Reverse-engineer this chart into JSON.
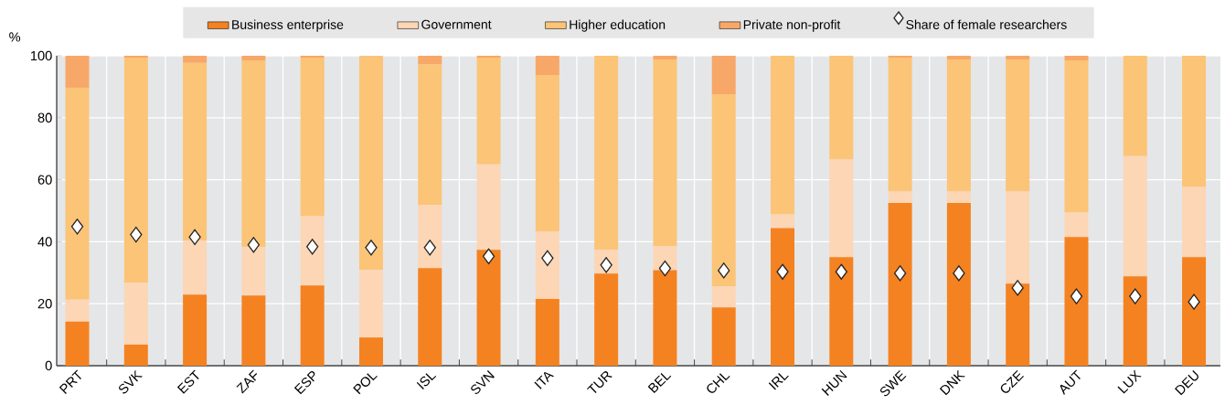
{
  "chart_data": {
    "type": "bar",
    "stacked": true,
    "ylabel": "%",
    "categories": [
      "PRT",
      "SVK",
      "EST",
      "ZAF",
      "ESP",
      "POL",
      "ISL",
      "SVN",
      "ITA",
      "TUR",
      "BEL",
      "CHL",
      "IRL",
      "HUN",
      "SWE",
      "DNK",
      "CZE",
      "AUT",
      "LUX",
      "DEU"
    ],
    "series": [
      {
        "name": "Business enterprise",
        "type": "bar",
        "color": "#f58220",
        "values": [
          14.2,
          6.8,
          22.9,
          22.6,
          25.9,
          9.1,
          31.5,
          37.4,
          21.5,
          29.7,
          30.8,
          18.8,
          44.4,
          35,
          52.5,
          52.5,
          26.5,
          41.5,
          28.8,
          35
        ]
      },
      {
        "name": "Government",
        "type": "bar",
        "color": "#fcd6b5",
        "values": [
          7.1,
          20,
          17.4,
          15.7,
          22.3,
          21.8,
          20.4,
          27.6,
          21.8,
          7.7,
          7.7,
          6.8,
          4.4,
          31.5,
          3.7,
          3.7,
          29.7,
          7.9,
          38.8,
          22.7
        ]
      },
      {
        "name": "Higher education",
        "type": "bar",
        "color": "#fbc477",
        "values": [
          68.4,
          72.6,
          57.4,
          60.2,
          51.2,
          68.9,
          45.3,
          34.4,
          50.5,
          62.6,
          60.3,
          62,
          51.2,
          33.5,
          43.2,
          42.6,
          42.6,
          49.1,
          32.4,
          42.3
        ]
      },
      {
        "name": "Private non-profit",
        "type": "bar",
        "color": "#f7a868",
        "values": [
          10.3,
          0.6,
          2.3,
          1.5,
          0.6,
          0.2,
          2.8,
          0.6,
          6.2,
          0,
          1.2,
          12.4,
          0,
          0,
          0.6,
          1.2,
          1.2,
          1.5,
          0,
          0
        ]
      },
      {
        "name": "Share of female researchers",
        "type": "scatter",
        "color": "#ffffff",
        "values": [
          44.9,
          42.3,
          41.5,
          39,
          38.4,
          38.1,
          38.1,
          35.3,
          34.7,
          32.5,
          31.4,
          30.7,
          30.3,
          30.3,
          29.8,
          29.8,
          25.1,
          22.4,
          22.4,
          20.6
        ]
      }
    ],
    "ylim": [
      0,
      100
    ],
    "yticks": [
      0,
      20,
      40,
      60,
      80,
      100
    ],
    "grid": true,
    "legend": "top",
    "marker": "diamond"
  }
}
